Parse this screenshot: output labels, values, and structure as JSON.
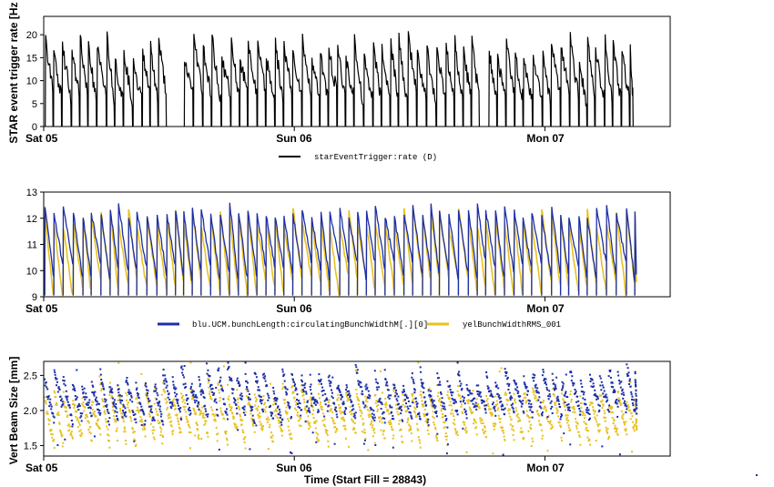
{
  "chart_data": [
    {
      "type": "line",
      "ylabel": "STAR event trigger rate [Hz",
      "ylim": [
        0,
        24
      ],
      "yticks": [
        "0",
        "5",
        "10",
        "15",
        "20"
      ],
      "x_range_hours": [
        0,
        60
      ],
      "x_ticks": [
        {
          "label": "Sat 05",
          "hour": 0
        },
        {
          "label": "Sun 06",
          "hour": 24
        },
        {
          "label": "Mon 07",
          "hour": 48
        }
      ],
      "series": [
        {
          "name": "starEventTrigger:rate (D)",
          "color": "#000000",
          "pattern": {
            "peak": [
              14,
              21
            ],
            "trough": [
              5,
              8
            ],
            "gaps_hours": [
              [
                11.3,
                12.8
              ],
              [
                21.3,
                21.6
              ],
              [
                41.5,
                42.3
              ]
            ],
            "end_hour": 56.5
          }
        }
      ],
      "legend": "bottom-center"
    },
    {
      "type": "line",
      "ylabel": "",
      "ylim": [
        9,
        13
      ],
      "yticks": [
        "9",
        "10",
        "11",
        "12",
        "13"
      ],
      "x_range_hours": [
        0,
        60
      ],
      "x_ticks": [
        {
          "label": "Sat 05",
          "hour": 0
        },
        {
          "label": "Sun 06",
          "hour": 24
        },
        {
          "label": "Mon 07",
          "hour": 48
        }
      ],
      "series": [
        {
          "name": "blu.UCM.bunchLength:circulatingBunchWidthM[.][0]",
          "color": "#1c2fa8",
          "pattern": {
            "high": [
              12.0,
              12.6
            ],
            "low": [
              9.6,
              10.4
            ]
          }
        },
        {
          "name": "yelBunchWidthRMS_001",
          "color": "#e8c21f",
          "pattern": {
            "high": [
              11.6,
              12.4
            ],
            "low": [
              9.0,
              9.8
            ]
          }
        }
      ],
      "legend": "bottom-center"
    },
    {
      "type": "scatter",
      "ylabel": "Vert Beam Size [mm]",
      "xlabel": "Time (Start Fill = 28843)",
      "ylim": [
        1.35,
        2.7
      ],
      "yticks": [
        "1.5",
        "2.0",
        "2.5"
      ],
      "x_range_hours": [
        0,
        60
      ],
      "x_ticks": [
        {
          "label": "Sat 05",
          "hour": 0
        },
        {
          "label": "Sun 06",
          "hour": 24
        },
        {
          "label": "Mon 07",
          "hour": 48
        }
      ],
      "series": [
        {
          "color": "#1c2fa8",
          "pattern": {
            "high": [
              2.3,
              2.65
            ],
            "low": [
              1.8,
              2.05
            ]
          }
        },
        {
          "color": "#e8c21f",
          "pattern": {
            "high": [
              2.1,
              2.4
            ],
            "low": [
              1.5,
              1.75
            ]
          }
        }
      ]
    }
  ]
}
